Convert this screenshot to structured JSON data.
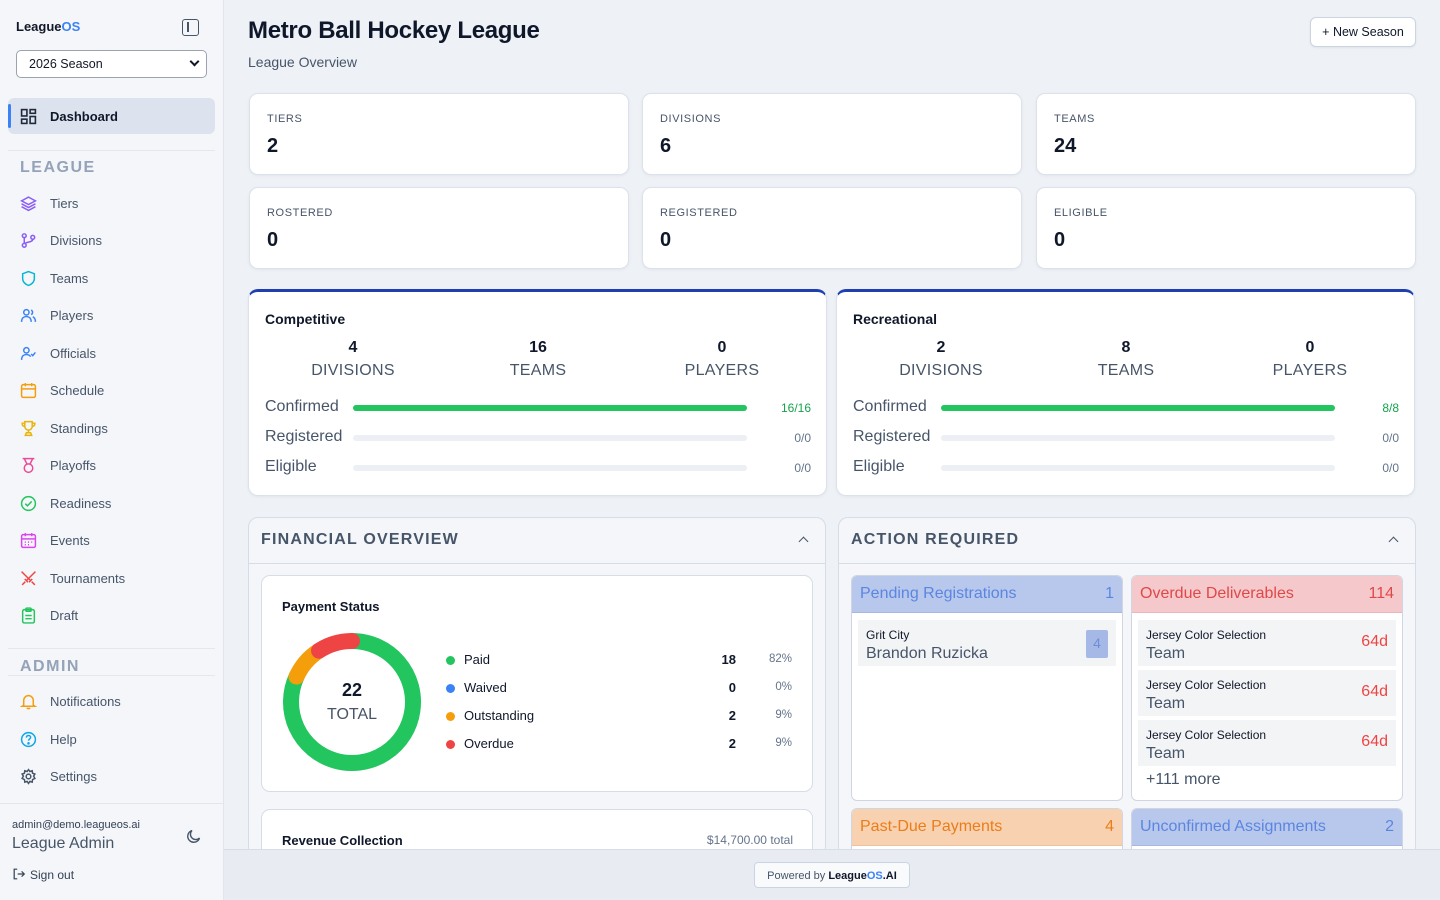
{
  "brand": {
    "name_part1": "League",
    "name_part2": "OS"
  },
  "season_select": {
    "value": "2026 Season"
  },
  "nav": {
    "dashboard": "Dashboard",
    "league_section": "LEAGUE",
    "league_items": [
      "Tiers",
      "Divisions",
      "Teams",
      "Players",
      "Officials",
      "Schedule",
      "Standings",
      "Playoffs",
      "Readiness",
      "Events",
      "Tournaments",
      "Draft"
    ],
    "admin_section": "ADMIN",
    "admin_items": [
      "Notifications",
      "Help",
      "Settings"
    ]
  },
  "user": {
    "email": "admin@demo.leagueos.ai",
    "name": "League Admin",
    "signout": "Sign out"
  },
  "header": {
    "title": "Metro Ball Hockey League",
    "subtitle": "League Overview",
    "new_season": "+ New Season"
  },
  "stats": [
    {
      "label": "TIERS",
      "value": "2"
    },
    {
      "label": "DIVISIONS",
      "value": "6"
    },
    {
      "label": "TEAMS",
      "value": "24"
    },
    {
      "label": "ROSTERED",
      "value": "0"
    },
    {
      "label": "REGISTERED",
      "value": "0"
    },
    {
      "label": "ELIGIBLE",
      "value": "0"
    }
  ],
  "tiers": [
    {
      "name": "Competitive",
      "divisions": "4",
      "teams": "16",
      "players": "0",
      "divisions_label": "DIVISIONS",
      "teams_label": "TEAMS",
      "players_label": "PLAYERS",
      "rows": [
        {
          "label": "Confirmed",
          "value": "16/16",
          "fraction": 1
        },
        {
          "label": "Registered",
          "value": "0/0",
          "fraction": 0
        },
        {
          "label": "Eligible",
          "value": "0/0",
          "fraction": 0
        }
      ]
    },
    {
      "name": "Recreational",
      "divisions": "2",
      "teams": "8",
      "players": "0",
      "divisions_label": "DIVISIONS",
      "teams_label": "TEAMS",
      "players_label": "PLAYERS",
      "rows": [
        {
          "label": "Confirmed",
          "value": "8/8",
          "fraction": 1
        },
        {
          "label": "Registered",
          "value": "0/0",
          "fraction": 0
        },
        {
          "label": "Eligible",
          "value": "0/0",
          "fraction": 0
        }
      ]
    }
  ],
  "financial": {
    "title": "FINANCIAL OVERVIEW",
    "payment_status": {
      "title": "Payment Status",
      "total": "22",
      "total_label": "TOTAL",
      "items": [
        {
          "name": "Paid",
          "count": "18",
          "pct": "82%",
          "color": "#22c55e",
          "value": 18
        },
        {
          "name": "Waived",
          "count": "0",
          "pct": "0%",
          "color": "#3b82f6",
          "value": 0
        },
        {
          "name": "Outstanding",
          "count": "2",
          "pct": "9%",
          "color": "#f59e0b",
          "value": 2
        },
        {
          "name": "Overdue",
          "count": "2",
          "pct": "9%",
          "color": "#ef4444",
          "value": 2
        }
      ]
    },
    "revenue": {
      "title": "Revenue Collection",
      "total": "$14,700.00 total"
    }
  },
  "actions": {
    "title": "ACTION REQUIRED",
    "pending": {
      "title": "Pending Registrations",
      "count": "1",
      "items": [
        {
          "team": "Grit City",
          "name": "Brandon Ruzicka",
          "badge": "4"
        }
      ]
    },
    "overdue": {
      "title": "Overdue Deliverables",
      "count": "114",
      "items": [
        {
          "task": "Jersey Color Selection",
          "type": "Team",
          "days": "64d"
        },
        {
          "task": "Jersey Color Selection",
          "type": "Team",
          "days": "64d"
        },
        {
          "task": "Jersey Color Selection",
          "type": "Team",
          "days": "64d"
        }
      ],
      "more": "+111 more"
    },
    "pastdue": {
      "title": "Past-Due Payments",
      "count": "4"
    },
    "unconfirmed": {
      "title": "Unconfirmed Assignments",
      "count": "2"
    }
  },
  "footer": {
    "powered": "Powered by",
    "brand1": "League",
    "brand2": "OS",
    "brand3": ".AI"
  }
}
